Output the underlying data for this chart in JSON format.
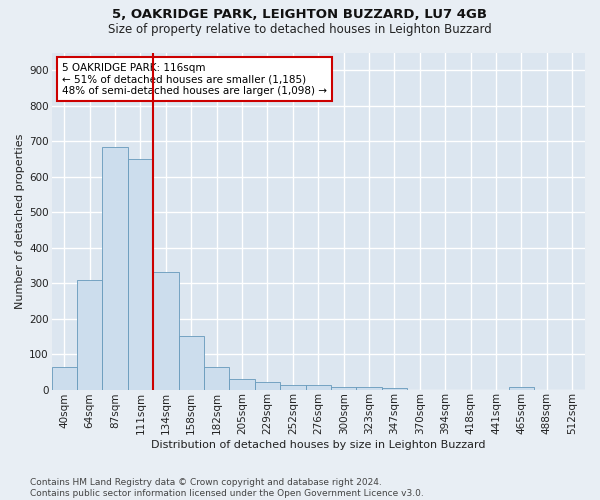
{
  "title1": "5, OAKRIDGE PARK, LEIGHTON BUZZARD, LU7 4GB",
  "title2": "Size of property relative to detached houses in Leighton Buzzard",
  "xlabel": "Distribution of detached houses by size in Leighton Buzzard",
  "ylabel": "Number of detached properties",
  "footer1": "Contains HM Land Registry data © Crown copyright and database right 2024.",
  "footer2": "Contains public sector information licensed under the Open Government Licence v3.0.",
  "bar_labels": [
    "40sqm",
    "64sqm",
    "87sqm",
    "111sqm",
    "134sqm",
    "158sqm",
    "182sqm",
    "205sqm",
    "229sqm",
    "252sqm",
    "276sqm",
    "300sqm",
    "323sqm",
    "347sqm",
    "370sqm",
    "394sqm",
    "418sqm",
    "441sqm",
    "465sqm",
    "488sqm",
    "512sqm"
  ],
  "bar_values": [
    63,
    310,
    685,
    650,
    330,
    150,
    63,
    30,
    20,
    12,
    12,
    8,
    8,
    5,
    0,
    0,
    0,
    0,
    8,
    0,
    0
  ],
  "bar_color": "#ccdded",
  "bar_edge_color": "#6699bb",
  "vline_color": "#cc0000",
  "annotation_text": "5 OAKRIDGE PARK: 116sqm\n← 51% of detached houses are smaller (1,185)\n48% of semi-detached houses are larger (1,098) →",
  "annotation_box_facecolor": "#ffffff",
  "annotation_box_edgecolor": "#cc0000",
  "ylim": [
    0,
    950
  ],
  "yticks": [
    0,
    100,
    200,
    300,
    400,
    500,
    600,
    700,
    800,
    900
  ],
  "bg_color": "#e8eef4",
  "plot_bg_color": "#dce6f0",
  "grid_color": "#ffffff",
  "title1_fontsize": 9.5,
  "title2_fontsize": 8.5,
  "axis_label_fontsize": 8,
  "tick_fontsize": 7.5,
  "footer_fontsize": 6.5,
  "annotation_fontsize": 7.5
}
